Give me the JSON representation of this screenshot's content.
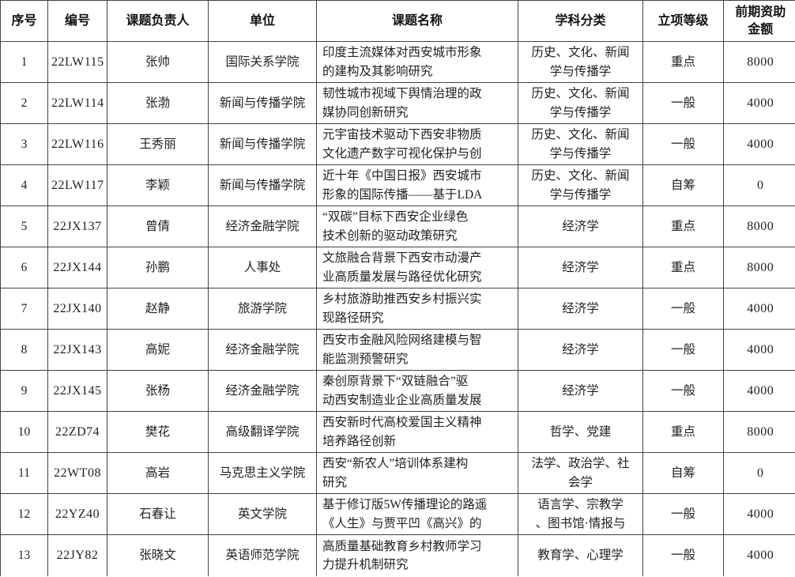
{
  "colors": {
    "background": "#ffffff",
    "border": "#424242",
    "header_text": "#111111",
    "body_text": "#212121"
  },
  "table": {
    "headers": [
      "序号",
      "编号",
      "课题负责人",
      "单位",
      "课题名称",
      "学科分类",
      "立项等级",
      "前期资助\n金额"
    ],
    "rows": [
      {
        "no": "1",
        "code": "22LW115",
        "leader": "张帅",
        "unit": "国际关系学院",
        "title": "印度主流媒体对西安城市形象\n的建构及其影响研究",
        "subject": "历史、文化、新闻\n学与传播学",
        "grade": "重点",
        "amount": "8000"
      },
      {
        "no": "2",
        "code": "22LW114",
        "leader": "张渤",
        "unit": "新闻与传播学院",
        "title": "韧性城市视域下舆情治理的政\n媒协同创新研究",
        "subject": "历史、文化、新闻\n学与传播学",
        "grade": "一般",
        "amount": "4000"
      },
      {
        "no": "3",
        "code": "22LW116",
        "leader": "王秀丽",
        "unit": "新闻与传播学院",
        "title": "元宇宙技术驱动下西安非物质\n文化遗产数字可视化保护与创",
        "subject": "历史、文化、新闻\n学与传播学",
        "grade": "一般",
        "amount": "4000"
      },
      {
        "no": "4",
        "code": "22LW117",
        "leader": "李颖",
        "unit": "新闻与传播学院",
        "title": "近十年《中国日报》西安城市\n形象的国际传播——基于LDA",
        "subject": "历史、文化、新闻\n学与传播学",
        "grade": "自筹",
        "amount": "0"
      },
      {
        "no": "5",
        "code": "22JX137",
        "leader": "曾倩",
        "unit": "经济金融学院",
        "title": "“双碳”目标下西安企业绿色\n技术创新的驱动政策研究",
        "subject": "经济学",
        "grade": "重点",
        "amount": "8000"
      },
      {
        "no": "6",
        "code": "22JX144",
        "leader": "孙鹏",
        "unit": "人事处",
        "title": "文旅融合背景下西安市动漫产\n业高质量发展与路径优化研究",
        "subject": "经济学",
        "grade": "重点",
        "amount": "8000"
      },
      {
        "no": "7",
        "code": "22JX140",
        "leader": "赵静",
        "unit": "旅游学院",
        "title": "乡村旅游助推西安乡村振兴实\n现路径研究",
        "subject": "经济学",
        "grade": "一般",
        "amount": "4000"
      },
      {
        "no": "8",
        "code": "22JX143",
        "leader": "高妮",
        "unit": "经济金融学院",
        "title": "西安市金融风险网络建模与智\n能监测预警研究",
        "subject": "经济学",
        "grade": "一般",
        "amount": "4000"
      },
      {
        "no": "9",
        "code": "22JX145",
        "leader": "张杨",
        "unit": "经济金融学院",
        "title": "秦创原背景下“双链融合”驱\n动西安制造业企业高质量发展",
        "subject": "经济学",
        "grade": "一般",
        "amount": "4000"
      },
      {
        "no": "10",
        "code": "22ZD74",
        "leader": "樊花",
        "unit": "高级翻译学院",
        "title": "西安新时代高校爱国主义精神\n培养路径创新",
        "subject": "哲学、党建",
        "grade": "重点",
        "amount": "8000"
      },
      {
        "no": "11",
        "code": "22WT08",
        "leader": "高岩",
        "unit": "马克思主义学院",
        "title": "西安“新农人”培训体系建构\n研究",
        "subject": "法学、政治学、社\n会学",
        "grade": "自筹",
        "amount": "0"
      },
      {
        "no": "12",
        "code": "22YZ40",
        "leader": "石春让",
        "unit": "英文学院",
        "title": "基于修订版5W传播理论的路遥\n《人生》与贾平凹《高兴》的",
        "subject": "语言学、宗教学\n、图书馆·情报与",
        "grade": "一般",
        "amount": "4000"
      },
      {
        "no": "13",
        "code": "22JY82",
        "leader": "张晓文",
        "unit": "英语师范学院",
        "title": "高质量基础教育乡村教师学习\n力提升机制研究",
        "subject": "教育学、心理学",
        "grade": "一般",
        "amount": "4000"
      }
    ]
  }
}
